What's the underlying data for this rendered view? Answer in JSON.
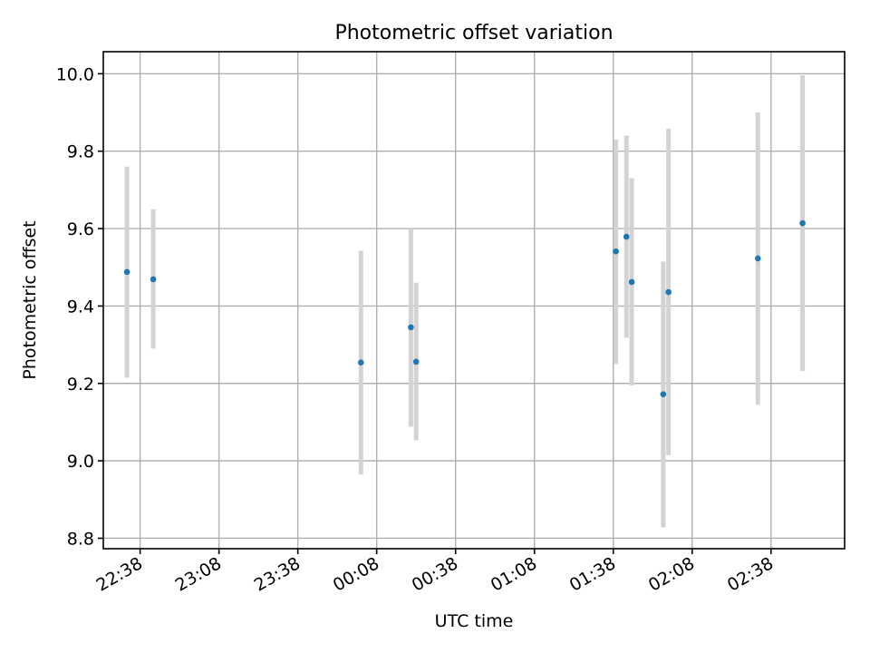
{
  "chart_data": {
    "type": "scatter",
    "title": "Photometric offset variation",
    "xlabel": "UTC time",
    "ylabel": "Photometric offset",
    "xlim": [
      "22:24",
      "03:06"
    ],
    "ylim": [
      8.773,
      10.057
    ],
    "x_ticks": [
      "22:38",
      "23:08",
      "23:38",
      "00:08",
      "00:38",
      "01:08",
      "01:38",
      "02:08",
      "02:38"
    ],
    "y_ticks": [
      8.8,
      9.0,
      9.2,
      9.4,
      9.6,
      9.8,
      10.0
    ],
    "grid": true,
    "colors": {
      "points": "#1f77b4",
      "errorbars": "#d3d3d3"
    },
    "series": [
      {
        "points": [
          {
            "x": "22:33",
            "y": 9.488,
            "low": 9.215,
            "high": 9.76
          },
          {
            "x": "22:43",
            "y": 9.469,
            "low": 9.29,
            "high": 9.65
          },
          {
            "x": "00:02",
            "y": 9.254,
            "low": 8.965,
            "high": 9.543
          },
          {
            "x": "00:21",
            "y": 9.345,
            "low": 9.088,
            "high": 9.6
          },
          {
            "x": "00:23",
            "y": 9.256,
            "low": 9.053,
            "high": 9.46
          },
          {
            "x": "01:39",
            "y": 9.541,
            "low": 9.25,
            "high": 9.83
          },
          {
            "x": "01:43",
            "y": 9.579,
            "low": 9.318,
            "high": 9.84
          },
          {
            "x": "01:45",
            "y": 9.462,
            "low": 9.195,
            "high": 9.73
          },
          {
            "x": "01:57",
            "y": 9.172,
            "low": 8.828,
            "high": 9.515
          },
          {
            "x": "01:59",
            "y": 9.436,
            "low": 9.015,
            "high": 9.858
          },
          {
            "x": "02:33",
            "y": 9.523,
            "low": 9.145,
            "high": 9.9
          },
          {
            "x": "02:50",
            "y": 9.614,
            "low": 9.232,
            "high": 9.996
          }
        ]
      }
    ]
  }
}
